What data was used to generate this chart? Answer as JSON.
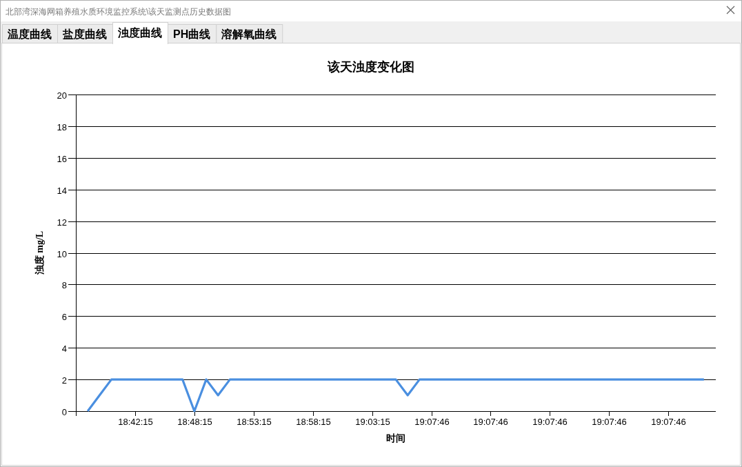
{
  "chart_data": {
    "type": "line",
    "title": "该天浊度变化图",
    "xlabel": "时间",
    "ylabel": "浊度 mg/L",
    "annotations": [
      "北部湾深海网箱养殖水质环境监控系统\\该天监测点历史数据图",
      "温度曲线",
      "盐度曲线",
      "浊度曲线",
      "PH曲线",
      "溶解氧曲线"
    ],
    "categories": [
      null,
      null,
      null,
      null,
      "18:42:15",
      null,
      null,
      null,
      null,
      "18:48:15",
      null,
      null,
      null,
      null,
      "18:53:15",
      null,
      null,
      null,
      null,
      "18:58:15",
      null,
      null,
      null,
      null,
      "19:03:15",
      null,
      null,
      null,
      null,
      "19:07:46",
      null,
      null,
      null,
      null,
      "19:07:46",
      null,
      null,
      null,
      null,
      "19:07:46",
      null,
      null,
      null,
      null,
      "19:07:46",
      null,
      null,
      null,
      null,
      "19:07:46",
      null,
      null,
      null
    ],
    "series": [
      {
        "color": "#4a8fe0",
        "values": [
          0,
          1,
          2,
          2,
          2,
          2,
          2,
          2,
          2,
          0,
          2,
          1,
          2,
          2,
          2,
          2,
          2,
          2,
          2,
          2,
          2,
          2,
          2,
          2,
          2,
          2,
          2,
          1,
          2,
          2,
          2,
          2,
          2,
          2,
          2,
          2,
          2,
          2,
          2,
          2,
          2,
          2,
          2,
          2,
          2,
          2,
          2,
          2,
          2,
          2,
          2,
          2,
          2
        ]
      }
    ],
    "ylim": [
      0,
      20
    ],
    "yticks": [
      0,
      2,
      4,
      6,
      8,
      10,
      12,
      14,
      16,
      18,
      20
    ],
    "grid": "y"
  }
}
